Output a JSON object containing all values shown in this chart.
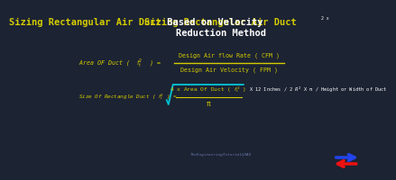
{
  "bg_color": "#1c2333",
  "title_part1": "Sizing Rectangular Air Duct",
  "title_part2": " Based on Velocity",
  "title_sup": "2 x",
  "title_sub": "Reduction Method",
  "formula1_left": "Area OF Duct (  $f_t^2$  ) =",
  "formula1_num": "Design Air flow Rate ( CFM )",
  "formula1_den": "Design Air Velocity ( FPM )",
  "formula2_left": "Size Of Rectangle Duct ( $f_t^2$ ) =",
  "formula2_sqrt_num": "4 x Area Of Duct ( $f_t^2$ )",
  "formula2_sqrt_den": "π",
  "formula2_right": " X 12 Inches / 2 $R^2$ X π / Height or Width of Duct",
  "yellow_color": "#D4CC00",
  "white_color": "#FFFFFF",
  "cyan_color": "#00BBCC",
  "watermark": "TheEngineeringTutorial@HAQ",
  "arrow_blue": "#2244EE",
  "arrow_red": "#EE1111"
}
